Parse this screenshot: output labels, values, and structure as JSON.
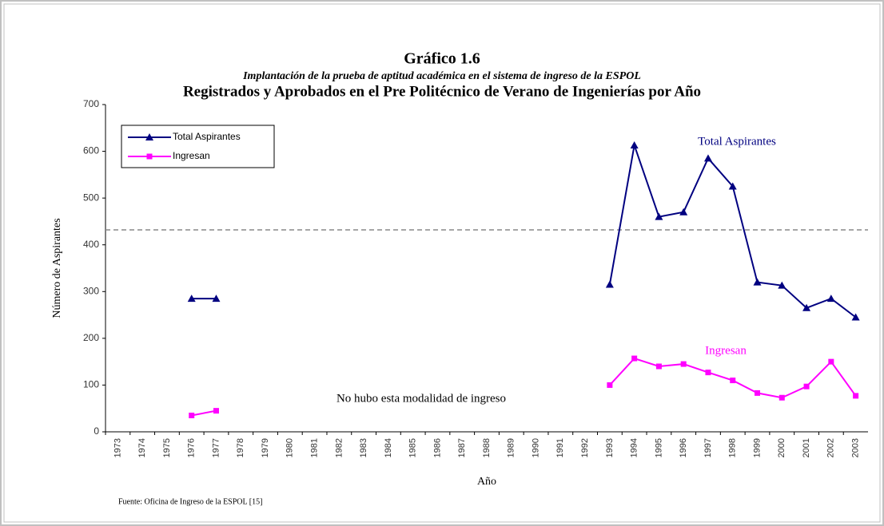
{
  "chart_data": {
    "type": "line",
    "title": "Gráfico 1.6",
    "subtitle": "Implantación de la prueba de aptitud académica en el sistema de ingreso de la ESPOL",
    "heading": "Registrados y Aprobados  en el Pre Politécnico de Verano  de Ingenierías por Año",
    "x_label": "Año",
    "y_label": "Número de Aspirantes",
    "source": "Fuente: Oficina de Ingreso de la ESPOL [15]",
    "categories": [
      "1973",
      "1974",
      "1975",
      "1976",
      "1977",
      "1978",
      "1979",
      "1980",
      "1981",
      "1982",
      "1983",
      "1984",
      "1985",
      "1986",
      "1987",
      "1988",
      "1989",
      "1990",
      "1991",
      "1992",
      "1993",
      "1994",
      "1995",
      "1996",
      "1997",
      "1998",
      "1999",
      "2000",
      "2001",
      "2002",
      "2003"
    ],
    "series": [
      {
        "name": "Total Aspirantes",
        "color": "#000080",
        "marker": "triangle",
        "values": [
          null,
          null,
          null,
          285,
          285,
          null,
          null,
          null,
          null,
          null,
          null,
          null,
          null,
          null,
          null,
          null,
          null,
          null,
          null,
          null,
          315,
          613,
          460,
          470,
          585,
          525,
          320,
          313,
          265,
          285,
          245
        ]
      },
      {
        "name": "Ingresan",
        "color": "#ff00ff",
        "marker": "square",
        "values": [
          null,
          null,
          null,
          35,
          45,
          null,
          null,
          null,
          null,
          null,
          null,
          null,
          null,
          null,
          null,
          null,
          null,
          null,
          null,
          null,
          100,
          157,
          140,
          145,
          127,
          110,
          83,
          73,
          97,
          150,
          77
        ]
      }
    ],
    "annotations": [
      "Total Aspirantes",
      "Ingresan",
      "No hubo esta modalidad de ingreso"
    ],
    "reference_line": 432,
    "ylim": [
      0,
      700
    ],
    "yticks": [
      0,
      100,
      200,
      300,
      400,
      500,
      600,
      700
    ],
    "grid": false,
    "legend": "upper left"
  }
}
